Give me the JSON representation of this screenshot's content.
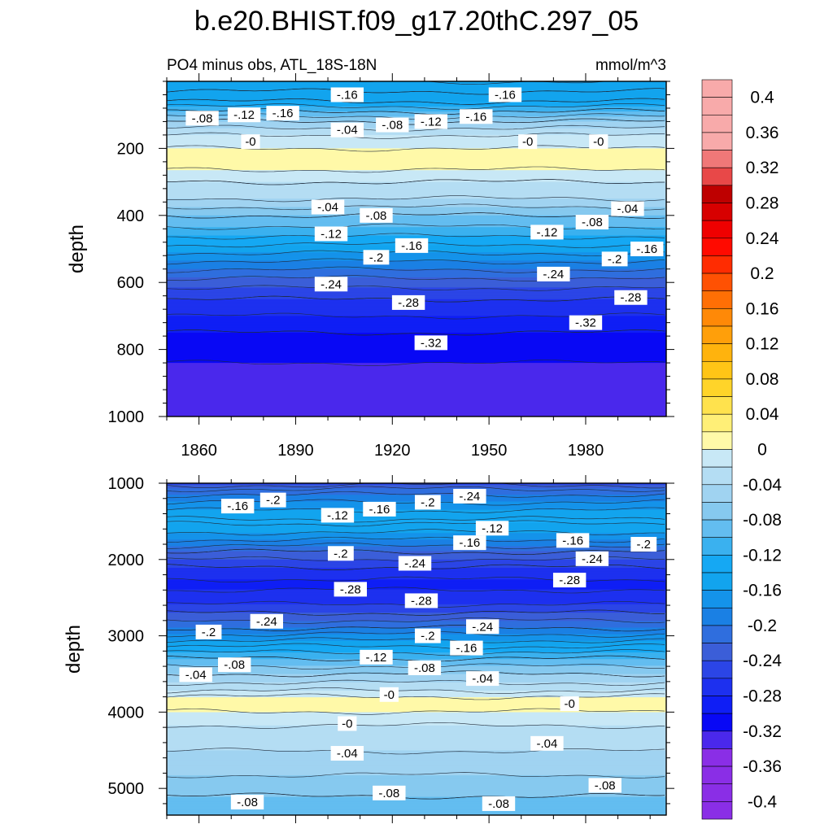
{
  "title": "b.e20.BHIST.f09_g17.20thC.297_05",
  "subtitle_left": "PO4 minus obs, ATL_18S-18N",
  "subtitle_right": "mmol/m^3",
  "colors": {
    "positive": [
      "#fff9a8",
      "#ffef77",
      "#ffe24d",
      "#ffd429",
      "#ffc516",
      "#ffb30d",
      "#ff9f0a",
      "#ff8907",
      "#ff6f05",
      "#ff5103",
      "#ff2c01",
      "#ff0a00",
      "#ef0000",
      "#d70000",
      "#be0000",
      "#e84848",
      "#f07878",
      "#f8aaaa"
    ],
    "negative": [
      "#c8e8f6",
      "#b4ddf3",
      "#a0d3f1",
      "#86c9ef",
      "#63bdf0",
      "#3ab1ef",
      "#15a8f3",
      "#12a4ee",
      "#1493ea",
      "#1a80e4",
      "#2f6ede",
      "#3b5ed8",
      "#2b45e6",
      "#1d30ef",
      "#0f1ef5",
      "#0808f5",
      "#4a28ec",
      "#8a2ee6"
    ],
    "contour": "#1e2a3a"
  },
  "chart_data": [
    {
      "type": "heatmap",
      "subtype": "filled-contour",
      "panel": "top",
      "title": "PO4 minus obs, ATL_18S-18N",
      "units": "mmol/m^3",
      "xlabel": "",
      "ylabel": "depth",
      "xlim": [
        1850,
        2005
      ],
      "ylim": [
        1000,
        0
      ],
      "xticks": [
        1860,
        1890,
        1920,
        1950,
        1980
      ],
      "yticks": [
        200,
        400,
        600,
        800,
        1000
      ],
      "contour_interval": 0.02,
      "profile": [
        {
          "depth": 0,
          "value": -0.14
        },
        {
          "depth": 30,
          "value": -0.16
        },
        {
          "depth": 60,
          "value": -0.14
        },
        {
          "depth": 90,
          "value": -0.1
        },
        {
          "depth": 120,
          "value": -0.06
        },
        {
          "depth": 150,
          "value": -0.03
        },
        {
          "depth": 180,
          "value": -0.005
        },
        {
          "depth": 220,
          "value": 0.005
        },
        {
          "depth": 260,
          "value": 0.002
        },
        {
          "depth": 300,
          "value": -0.02
        },
        {
          "depth": 350,
          "value": -0.04
        },
        {
          "depth": 400,
          "value": -0.08
        },
        {
          "depth": 450,
          "value": -0.11
        },
        {
          "depth": 500,
          "value": -0.15
        },
        {
          "depth": 550,
          "value": -0.19
        },
        {
          "depth": 600,
          "value": -0.23
        },
        {
          "depth": 650,
          "value": -0.26
        },
        {
          "depth": 700,
          "value": -0.28
        },
        {
          "depth": 750,
          "value": -0.3
        },
        {
          "depth": 800,
          "value": -0.315
        },
        {
          "depth": 880,
          "value": -0.325
        },
        {
          "depth": 1000,
          "value": -0.33
        }
      ],
      "labels": [
        {
          "text": "-.16",
          "x": 1906,
          "depth": 40
        },
        {
          "text": "-.16",
          "x": 1955,
          "depth": 40
        },
        {
          "text": "-.08",
          "x": 1861,
          "depth": 110
        },
        {
          "text": "-.12",
          "x": 1874,
          "depth": 100
        },
        {
          "text": "-.16",
          "x": 1886,
          "depth": 95
        },
        {
          "text": "-.04",
          "x": 1906,
          "depth": 145
        },
        {
          "text": "-.08",
          "x": 1920,
          "depth": 130
        },
        {
          "text": "-.12",
          "x": 1932,
          "depth": 120
        },
        {
          "text": "-.16",
          "x": 1946,
          "depth": 105
        },
        {
          "text": "-0",
          "x": 1876,
          "depth": 180
        },
        {
          "text": "-0",
          "x": 1962,
          "depth": 180
        },
        {
          "text": "-0",
          "x": 1984,
          "depth": 180
        },
        {
          "text": "-.04",
          "x": 1900,
          "depth": 375
        },
        {
          "text": "-.08",
          "x": 1915,
          "depth": 400
        },
        {
          "text": "-.04",
          "x": 1993,
          "depth": 380
        },
        {
          "text": "-.08",
          "x": 1982,
          "depth": 420
        },
        {
          "text": "-.12",
          "x": 1901,
          "depth": 455
        },
        {
          "text": "-.16",
          "x": 1926,
          "depth": 490
        },
        {
          "text": "-.12",
          "x": 1968,
          "depth": 450
        },
        {
          "text": "-.16",
          "x": 1999,
          "depth": 500
        },
        {
          "text": "-.2",
          "x": 1915,
          "depth": 525
        },
        {
          "text": "-.2",
          "x": 1989,
          "depth": 530
        },
        {
          "text": "-.24",
          "x": 1901,
          "depth": 605
        },
        {
          "text": "-.24",
          "x": 1970,
          "depth": 575
        },
        {
          "text": "-.28",
          "x": 1925,
          "depth": 660
        },
        {
          "text": "-.28",
          "x": 1994,
          "depth": 645
        },
        {
          "text": "-.32",
          "x": 1932,
          "depth": 780
        },
        {
          "text": "-.32",
          "x": 1980,
          "depth": 720
        }
      ]
    },
    {
      "type": "heatmap",
      "subtype": "filled-contour",
      "panel": "bottom",
      "title": "",
      "xlabel": "",
      "ylabel": "depth",
      "xlim": [
        1850,
        2005
      ],
      "ylim": [
        5350,
        1000
      ],
      "yticks": [
        1000,
        2000,
        3000,
        4000,
        5000
      ],
      "contour_interval": 0.02,
      "profile": [
        {
          "depth": 1000,
          "value": -0.25
        },
        {
          "depth": 1100,
          "value": -0.21
        },
        {
          "depth": 1300,
          "value": -0.17
        },
        {
          "depth": 1500,
          "value": -0.135
        },
        {
          "depth": 1700,
          "value": -0.17
        },
        {
          "depth": 1900,
          "value": -0.22
        },
        {
          "depth": 2100,
          "value": -0.26
        },
        {
          "depth": 2300,
          "value": -0.285
        },
        {
          "depth": 2500,
          "value": -0.275
        },
        {
          "depth": 2700,
          "value": -0.24
        },
        {
          "depth": 2900,
          "value": -0.2
        },
        {
          "depth": 3100,
          "value": -0.15
        },
        {
          "depth": 3300,
          "value": -0.1
        },
        {
          "depth": 3500,
          "value": -0.06
        },
        {
          "depth": 3700,
          "value": -0.025
        },
        {
          "depth": 3820,
          "value": 0.006
        },
        {
          "depth": 3950,
          "value": 0.006
        },
        {
          "depth": 4100,
          "value": -0.015
        },
        {
          "depth": 4300,
          "value": -0.028
        },
        {
          "depth": 4600,
          "value": -0.045
        },
        {
          "depth": 4900,
          "value": -0.065
        },
        {
          "depth": 5100,
          "value": -0.08
        },
        {
          "depth": 5350,
          "value": -0.095
        }
      ],
      "labels": [
        {
          "text": "-.16",
          "x": 1872,
          "depth": 1300
        },
        {
          "text": "-.2",
          "x": 1883,
          "depth": 1220
        },
        {
          "text": "-.12",
          "x": 1903,
          "depth": 1420
        },
        {
          "text": "-.16",
          "x": 1916,
          "depth": 1340
        },
        {
          "text": "-.2",
          "x": 1931,
          "depth": 1250
        },
        {
          "text": "-.24",
          "x": 1944,
          "depth": 1170
        },
        {
          "text": "-.12",
          "x": 1951,
          "depth": 1590
        },
        {
          "text": "-.16",
          "x": 1944,
          "depth": 1780
        },
        {
          "text": "-.16",
          "x": 1976,
          "depth": 1750
        },
        {
          "text": "-.2",
          "x": 1998,
          "depth": 1800
        },
        {
          "text": "-.2",
          "x": 1904,
          "depth": 1920
        },
        {
          "text": "-.24",
          "x": 1927,
          "depth": 2050
        },
        {
          "text": "-.24",
          "x": 1982,
          "depth": 1990
        },
        {
          "text": "-.28",
          "x": 1907,
          "depth": 2390
        },
        {
          "text": "-.28",
          "x": 1975,
          "depth": 2270
        },
        {
          "text": "-.28",
          "x": 1929,
          "depth": 2540
        },
        {
          "text": "-.24",
          "x": 1881,
          "depth": 2810
        },
        {
          "text": "-.2",
          "x": 1863,
          "depth": 2950
        },
        {
          "text": "-.2",
          "x": 1931,
          "depth": 3000
        },
        {
          "text": "-.24",
          "x": 1948,
          "depth": 2880
        },
        {
          "text": "-.16",
          "x": 1943,
          "depth": 3160
        },
        {
          "text": "-.12",
          "x": 1915,
          "depth": 3280
        },
        {
          "text": "-.08",
          "x": 1871,
          "depth": 3380
        },
        {
          "text": "-.04",
          "x": 1859,
          "depth": 3510
        },
        {
          "text": "-.08",
          "x": 1930,
          "depth": 3420
        },
        {
          "text": "-.04",
          "x": 1948,
          "depth": 3560
        },
        {
          "text": "-0",
          "x": 1919,
          "depth": 3770
        },
        {
          "text": "-0",
          "x": 1975,
          "depth": 3890
        },
        {
          "text": "-0",
          "x": 1906,
          "depth": 4150
        },
        {
          "text": "-.04",
          "x": 1906,
          "depth": 4540
        },
        {
          "text": "-.04",
          "x": 1968,
          "depth": 4410
        },
        {
          "text": "-.08",
          "x": 1875,
          "depth": 5180
        },
        {
          "text": "-.08",
          "x": 1919,
          "depth": 5060
        },
        {
          "text": "-.08",
          "x": 1953,
          "depth": 5200
        },
        {
          "text": "-.08",
          "x": 1986,
          "depth": 4960
        }
      ]
    }
  ],
  "colorbar": {
    "labels": [
      "0.4",
      "0.36",
      "0.32",
      "0.28",
      "0.24",
      "0.2",
      "0.16",
      "0.12",
      "0.08",
      "0.04",
      "0",
      "-0.04",
      "-0.08",
      "-0.12",
      "-0.16",
      "-0.2",
      "-0.24",
      "-0.28",
      "-0.32",
      "-0.36",
      "-0.4"
    ],
    "label_values": [
      0.4,
      0.36,
      0.32,
      0.28,
      0.24,
      0.2,
      0.16,
      0.12,
      0.08,
      0.04,
      0,
      -0.04,
      -0.08,
      -0.12,
      -0.16,
      -0.2,
      -0.24,
      -0.28,
      -0.32,
      -0.36,
      -0.4
    ],
    "vmin": -0.42,
    "vmax": 0.42,
    "step": 0.02
  }
}
